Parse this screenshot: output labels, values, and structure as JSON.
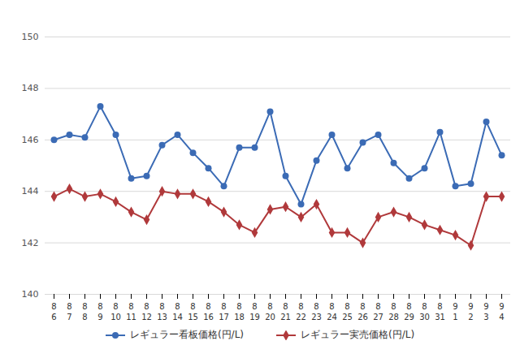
{
  "chart_data": {
    "type": "line",
    "categories": [
      "8\n6",
      "8\n7",
      "8\n8",
      "8\n9",
      "8\n10",
      "8\n11",
      "8\n12",
      "8\n13",
      "8\n14",
      "8\n15",
      "8\n16",
      "8\n17",
      "8\n18",
      "8\n19",
      "8\n20",
      "8\n21",
      "8\n22",
      "8\n23",
      "8\n24",
      "8\n25",
      "8\n26",
      "8\n27",
      "8\n28",
      "8\n29",
      "8\n30",
      "8\n31",
      "9\n1",
      "9\n2",
      "9\n3",
      "9\n4"
    ],
    "series": [
      {
        "name": "レギュラー看板価格(円/L)",
        "color": "#3b6bb5",
        "marker": "circle",
        "values": [
          146.0,
          146.2,
          146.1,
          147.3,
          146.2,
          144.5,
          144.6,
          145.8,
          146.2,
          145.5,
          144.9,
          144.2,
          145.7,
          145.7,
          147.1,
          144.6,
          143.5,
          145.2,
          146.2,
          144.9,
          145.9,
          146.2,
          145.1,
          144.5,
          144.9,
          146.3,
          144.2,
          144.3,
          146.7,
          145.4
        ]
      },
      {
        "name": "レギュラー実売価格(円/L)",
        "color": "#b0393b",
        "marker": "diamond",
        "values": [
          143.8,
          144.1,
          143.8,
          143.9,
          143.6,
          143.2,
          142.9,
          144.0,
          143.9,
          143.9,
          143.6,
          143.2,
          142.7,
          142.4,
          143.3,
          143.4,
          143.0,
          143.5,
          142.4,
          142.4,
          142.0,
          143.0,
          143.2,
          143.0,
          142.7,
          142.5,
          142.3,
          141.9,
          143.8,
          143.8
        ]
      }
    ],
    "ylim": [
      140,
      150
    ],
    "yticks": [
      140,
      142,
      144,
      146,
      148,
      150
    ],
    "grid": true,
    "legend": "bottom"
  }
}
